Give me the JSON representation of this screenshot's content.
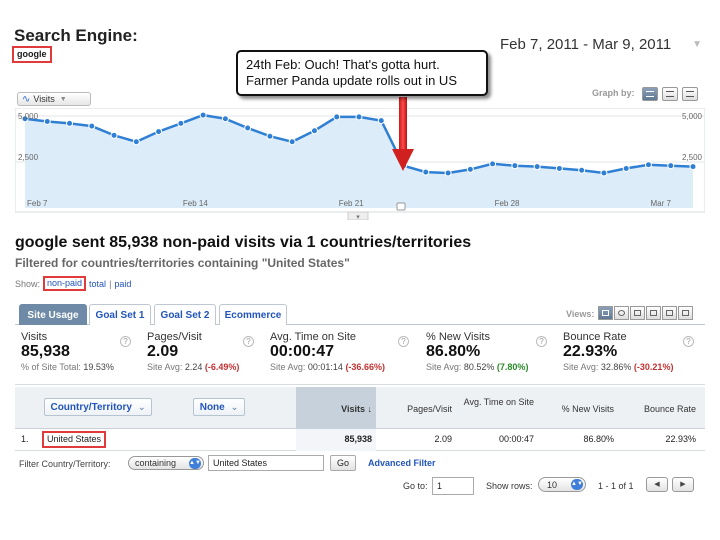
{
  "header": {
    "title": "Search Engine:",
    "tag": "google",
    "date_range": "Feb 7, 2011 - Mar 9, 2011"
  },
  "callout": {
    "line1": "24th Feb: Ouch! That's gotta hurt.",
    "line2": "Farmer Panda update rolls out in US"
  },
  "chart": {
    "metric_button": "Visits",
    "graph_by_label": "Graph by:",
    "y_ticks_left": [
      "5,000",
      "2,500"
    ],
    "y_ticks_right": [
      "5,000",
      "2,500"
    ],
    "x_ticks": [
      "Feb 7",
      "Feb 14",
      "Feb 21",
      "Feb 28",
      "Mar 7"
    ]
  },
  "chart_data": {
    "type": "area",
    "title": "",
    "xlabel": "",
    "ylabel": "",
    "ylim": [
      0,
      5000
    ],
    "grid": true,
    "x": [
      "Feb 7",
      "Feb 8",
      "Feb 9",
      "Feb 10",
      "Feb 11",
      "Feb 12",
      "Feb 13",
      "Feb 14",
      "Feb 15",
      "Feb 16",
      "Feb 17",
      "Feb 18",
      "Feb 19",
      "Feb 20",
      "Feb 21",
      "Feb 22",
      "Feb 23",
      "Feb 24",
      "Feb 25",
      "Feb 26",
      "Feb 27",
      "Feb 28",
      "Mar 1",
      "Mar 2",
      "Mar 3",
      "Mar 4",
      "Mar 5",
      "Mar 6",
      "Mar 7",
      "Mar 8",
      "Mar 9"
    ],
    "series": [
      {
        "values": [
          4850,
          4700,
          4600,
          4450,
          3950,
          3600,
          4150,
          4600,
          5050,
          4850,
          4350,
          3900,
          3600,
          4200,
          4950,
          4950,
          4750,
          2300,
          1950,
          1900,
          2100,
          2400,
          2300,
          2250,
          2150,
          2050,
          1900,
          2150,
          2350,
          2300,
          2250
        ]
      }
    ],
    "annotation": "24th Feb: Ouch! That's gotta hurt. Farmer Panda update rolls out in US"
  },
  "summary": {
    "title": "google sent 85,938 non-paid visits via 1 countries/territories",
    "subtitle": "Filtered for countries/territories containing \"United States\"",
    "show_label": "Show:",
    "show_options": [
      "non-paid",
      "total",
      "paid"
    ],
    "show_separator": "|"
  },
  "tabs": [
    "Site Usage",
    "Goal Set 1",
    "Goal Set 2",
    "Ecommerce"
  ],
  "views_label": "Views:",
  "metrics": [
    {
      "name": "Visits",
      "value": "85,938",
      "sub_prefix": "% of Site Total:",
      "sub_value": "19.53%",
      "sub_delta": ""
    },
    {
      "name": "Pages/Visit",
      "value": "2.09",
      "sub_prefix": "Site Avg:",
      "sub_value": "2.24",
      "sub_delta": "(-6.49%)"
    },
    {
      "name": "Avg. Time on Site",
      "value": "00:00:47",
      "sub_prefix": "Site Avg:",
      "sub_value": "00:01:14",
      "sub_delta": "(-36.66%)"
    },
    {
      "name": "% New Visits",
      "value": "86.80%",
      "sub_prefix": "Site Avg:",
      "sub_value": "80.52%",
      "sub_delta": "(7.80%)"
    },
    {
      "name": "Bounce Rate",
      "value": "22.93%",
      "sub_prefix": "Site Avg:",
      "sub_value": "32.86%",
      "sub_delta": "(-30.21%)"
    }
  ],
  "metric_help": "?",
  "table": {
    "dimension_primary": "Country/Territory",
    "dimension_secondary": "None",
    "columns": [
      "Visits ↓",
      "Pages/Visit",
      "Avg. Time on Site",
      "% New Visits",
      "Bounce Rate"
    ],
    "rows": [
      {
        "index": "1.",
        "country": "United States",
        "visits": "85,938",
        "pages_visit": "2.09",
        "avg_time": "00:00:47",
        "new_visits": "86.80%",
        "bounce_rate": "22.93%"
      }
    ]
  },
  "filter": {
    "label": "Filter Country/Territory:",
    "mode": "containing",
    "value": "United States",
    "go": "Go",
    "advanced": "Advanced Filter"
  },
  "pagination": {
    "goto_label": "Go to:",
    "goto_value": "1",
    "rows_label": "Show rows:",
    "rows_value": "10",
    "page_info": "1 - 1 of 1",
    "prev": "◀",
    "next": "▶"
  },
  "colors": {
    "accent_red": "#e03a3a",
    "line_blue": "#2f7fd4",
    "area_fill": "#dcecf9",
    "link_blue": "#2255bb",
    "tab_active": "#6e8aa6",
    "negative": "#c43131",
    "positive": "#2a8a2a"
  }
}
